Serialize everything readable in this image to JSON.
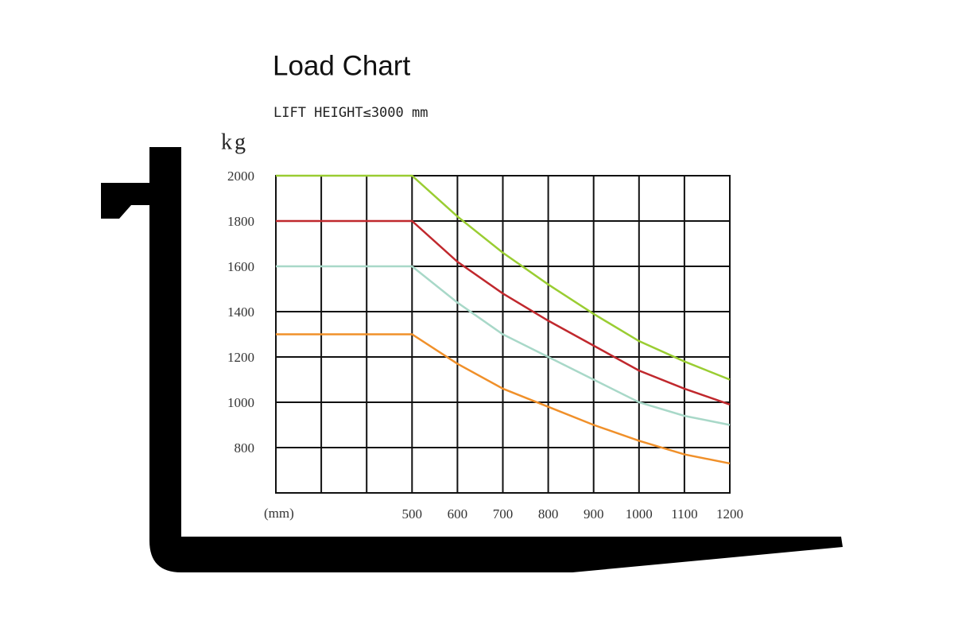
{
  "chart_data": {
    "type": "line",
    "title": "Load Chart",
    "subtitle": "LIFT HEIGHT≤3000 mm",
    "ylabel": "kg",
    "xlabel": "(mm)",
    "x": [
      200,
      300,
      400,
      500,
      600,
      700,
      800,
      900,
      1000,
      1100,
      1200
    ],
    "series": [
      {
        "color": "#9acd32",
        "values": [
          2000,
          2000,
          2000,
          2000,
          1820,
          1660,
          1520,
          1390,
          1270,
          1180,
          1100
        ]
      },
      {
        "color": "#c0282d",
        "values": [
          1800,
          1800,
          1800,
          1800,
          1620,
          1480,
          1360,
          1250,
          1140,
          1060,
          990
        ]
      },
      {
        "color": "#a8d8c8",
        "values": [
          1600,
          1600,
          1600,
          1600,
          1440,
          1300,
          1200,
          1100,
          1000,
          940,
          900
        ]
      },
      {
        "color": "#f0902a",
        "values": [
          1300,
          1300,
          1300,
          1300,
          1170,
          1060,
          980,
          900,
          830,
          770,
          730
        ]
      }
    ],
    "xlim": [
      200,
      1200
    ],
    "ylim": [
      600,
      2000
    ],
    "xticks": [
      500,
      600,
      700,
      800,
      900,
      1000,
      1100,
      1200
    ],
    "xgrid": [
      200,
      300,
      400,
      500,
      600,
      700,
      800,
      900,
      1000,
      1100,
      1200
    ],
    "yticks": [
      800,
      1000,
      1200,
      1400,
      1600,
      1800,
      2000
    ],
    "grid": true
  }
}
